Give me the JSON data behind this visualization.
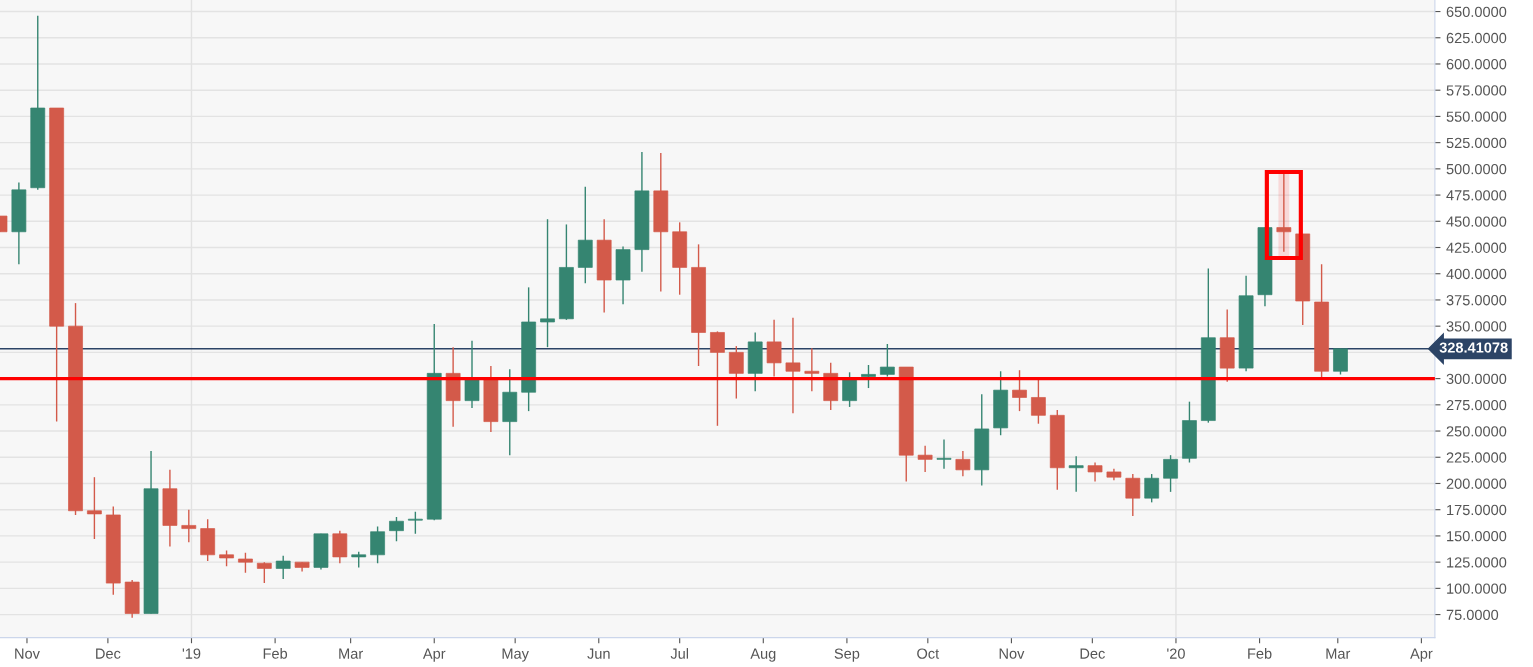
{
  "chart_data": {
    "type": "candlestick",
    "x": [
      "2018-10-22",
      "2018-10-29",
      "2018-11-05",
      "2018-11-12",
      "2018-11-19",
      "2018-11-26",
      "2018-12-03",
      "2018-12-10",
      "2018-12-17",
      "2018-12-24",
      "2018-12-31",
      "2019-01-07",
      "2019-01-14",
      "2019-01-21",
      "2019-01-28",
      "2019-02-04",
      "2019-02-11",
      "2019-02-18",
      "2019-02-25",
      "2019-03-04",
      "2019-03-11",
      "2019-03-18",
      "2019-03-25",
      "2019-04-01",
      "2019-04-08",
      "2019-04-15",
      "2019-04-22",
      "2019-04-29",
      "2019-05-06",
      "2019-05-13",
      "2019-05-20",
      "2019-05-27",
      "2019-06-03",
      "2019-06-10",
      "2019-06-17",
      "2019-06-24",
      "2019-07-01",
      "2019-07-08",
      "2019-07-15",
      "2019-07-22",
      "2019-07-29",
      "2019-08-05",
      "2019-08-12",
      "2019-08-19",
      "2019-08-26",
      "2019-09-02",
      "2019-09-09",
      "2019-09-16",
      "2019-09-23",
      "2019-09-30",
      "2019-10-07",
      "2019-10-14",
      "2019-10-21",
      "2019-10-28",
      "2019-11-04",
      "2019-11-11",
      "2019-11-18",
      "2019-11-25",
      "2019-12-02",
      "2019-12-09",
      "2019-12-16",
      "2019-12-23",
      "2019-12-30",
      "2020-01-06",
      "2020-01-13",
      "2020-01-20",
      "2020-01-27",
      "2020-02-03",
      "2020-02-10",
      "2020-02-17",
      "2020-02-24",
      "2020-03-02"
    ],
    "ohlc": [
      [
        455,
        455,
        440,
        440
      ],
      [
        440,
        487,
        409,
        480
      ],
      [
        482,
        646,
        480,
        558
      ],
      [
        558,
        558,
        259,
        350
      ],
      [
        350,
        372,
        170,
        174
      ],
      [
        174,
        206,
        147,
        171
      ],
      [
        170,
        178,
        94,
        105
      ],
      [
        106,
        108,
        72,
        76
      ],
      [
        76,
        231,
        76,
        195
      ],
      [
        195,
        213,
        140,
        160
      ],
      [
        160,
        175,
        144,
        157
      ],
      [
        157,
        166,
        126,
        132
      ],
      [
        132,
        136,
        121,
        129
      ],
      [
        128,
        134,
        115,
        125
      ],
      [
        124,
        125,
        105,
        119
      ],
      [
        119,
        131,
        109,
        126
      ],
      [
        125,
        125,
        116,
        120
      ],
      [
        120,
        152,
        118,
        152
      ],
      [
        152,
        155,
        124,
        130
      ],
      [
        130,
        135,
        120,
        132
      ],
      [
        132,
        159,
        124,
        154
      ],
      [
        155,
        168,
        145,
        164
      ],
      [
        165,
        173,
        152,
        166
      ],
      [
        166,
        352,
        165,
        305
      ],
      [
        305,
        330,
        254,
        279
      ],
      [
        279,
        336,
        272,
        299
      ],
      [
        299,
        312,
        249,
        259
      ],
      [
        259,
        309,
        227,
        287
      ],
      [
        287,
        387,
        269,
        354
      ],
      [
        354,
        452,
        330,
        357
      ],
      [
        357,
        447,
        356,
        406
      ],
      [
        406,
        483,
        391,
        432
      ],
      [
        432,
        452,
        363,
        394
      ],
      [
        394,
        426,
        371,
        423
      ],
      [
        423,
        516,
        402,
        479
      ],
      [
        479,
        515,
        383,
        440
      ],
      [
        440,
        449,
        380,
        406
      ],
      [
        406,
        428,
        312,
        344
      ],
      [
        344,
        345,
        255,
        325
      ],
      [
        325,
        331,
        281,
        305
      ],
      [
        305,
        344,
        288,
        335
      ],
      [
        335,
        356,
        302,
        315
      ],
      [
        315,
        358,
        267,
        307
      ],
      [
        307,
        329,
        288,
        305
      ],
      [
        305,
        315,
        270,
        279
      ],
      [
        279,
        306,
        273,
        300
      ],
      [
        302,
        313,
        291,
        304
      ],
      [
        304,
        333,
        302,
        311
      ],
      [
        311,
        311,
        202,
        227
      ],
      [
        227,
        236,
        211,
        223
      ],
      [
        223,
        242,
        214,
        224
      ],
      [
        223,
        231,
        207,
        213
      ],
      [
        213,
        285,
        198,
        252
      ],
      [
        253,
        307,
        246,
        289
      ],
      [
        289,
        308,
        269,
        282
      ],
      [
        282,
        300,
        257,
        265
      ],
      [
        265,
        270,
        194,
        215
      ],
      [
        215,
        226,
        192,
        217
      ],
      [
        217,
        220,
        202,
        211
      ],
      [
        211,
        214,
        203,
        206
      ],
      [
        205,
        209,
        169,
        186
      ],
      [
        186,
        209,
        182,
        205
      ],
      [
        205,
        227,
        192,
        223
      ],
      [
        224,
        278,
        220,
        260
      ],
      [
        260,
        405,
        258,
        339
      ],
      [
        339,
        366,
        297,
        310
      ],
      [
        310,
        398,
        307,
        379
      ],
      [
        380,
        444,
        369,
        444
      ],
      [
        444,
        497,
        421,
        440
      ],
      [
        438,
        438,
        351,
        374
      ],
      [
        373,
        409,
        299,
        307
      ],
      [
        307,
        328.41078,
        304,
        328.41078
      ]
    ],
    "colors": [
      "#d35a4a",
      "#358571",
      "#358571",
      "#d35a4a",
      "#d35a4a",
      "#d35a4a",
      "#d35a4a",
      "#d35a4a",
      "#358571",
      "#d35a4a",
      "#d35a4a",
      "#d35a4a",
      "#d35a4a",
      "#d35a4a",
      "#d35a4a",
      "#358571",
      "#d35a4a",
      "#358571",
      "#d35a4a",
      "#358571",
      "#358571",
      "#358571",
      "#358571",
      "#358571",
      "#d35a4a",
      "#358571",
      "#d35a4a",
      "#358571",
      "#358571",
      "#358571",
      "#358571",
      "#358571",
      "#d35a4a",
      "#358571",
      "#358571",
      "#d35a4a",
      "#d35a4a",
      "#d35a4a",
      "#d35a4a",
      "#d35a4a",
      "#358571",
      "#d35a4a",
      "#d35a4a",
      "#d35a4a",
      "#d35a4a",
      "#358571",
      "#358571",
      "#358571",
      "#d35a4a",
      "#d35a4a",
      "#358571",
      "#d35a4a",
      "#358571",
      "#358571",
      "#d35a4a",
      "#d35a4a",
      "#d35a4a",
      "#358571",
      "#d35a4a",
      "#d35a4a",
      "#d35a4a",
      "#358571",
      "#358571",
      "#358571",
      "#358571",
      "#d35a4a",
      "#358571",
      "#358571",
      "#d35a4a",
      "#d35a4a",
      "#d35a4a",
      "#358571"
    ],
    "xlim": [
      "2018-10-22",
      "2020-04-06"
    ],
    "xticks": [
      {
        "value": "2018-11-01",
        "label": "Nov"
      },
      {
        "value": "2018-12-01",
        "label": "Dec"
      },
      {
        "value": "2019-01-01",
        "label": "'19"
      },
      {
        "value": "2019-02-01",
        "label": "Feb"
      },
      {
        "value": "2019-03-01",
        "label": "Mar"
      },
      {
        "value": "2019-04-01",
        "label": "Apr"
      },
      {
        "value": "2019-05-01",
        "label": "May"
      },
      {
        "value": "2019-06-01",
        "label": "Jun"
      },
      {
        "value": "2019-07-01",
        "label": "Jul"
      },
      {
        "value": "2019-08-01",
        "label": "Aug"
      },
      {
        "value": "2019-09-01",
        "label": "Sep"
      },
      {
        "value": "2019-10-01",
        "label": "Oct"
      },
      {
        "value": "2019-11-01",
        "label": "Nov"
      },
      {
        "value": "2019-12-01",
        "label": "Dec"
      },
      {
        "value": "2020-01-01",
        "label": "'20"
      },
      {
        "value": "2020-02-01",
        "label": "Feb"
      },
      {
        "value": "2020-03-01",
        "label": "Mar"
      },
      {
        "value": "2020-04-01",
        "label": "Apr"
      }
    ],
    "ylim": [
      53,
      661
    ],
    "yticks": [
      {
        "value": 75,
        "label": "75.0000"
      },
      {
        "value": 100,
        "label": "100.0000"
      },
      {
        "value": 125,
        "label": "125.0000"
      },
      {
        "value": 150,
        "label": "150.0000"
      },
      {
        "value": 175,
        "label": "175.0000"
      },
      {
        "value": 200,
        "label": "200.0000"
      },
      {
        "value": 225,
        "label": "225.0000"
      },
      {
        "value": 250,
        "label": "250.0000"
      },
      {
        "value": 275,
        "label": "275.0000"
      },
      {
        "value": 300,
        "label": "300.0000"
      },
      {
        "value": 325,
        "label": null
      },
      {
        "value": 350,
        "label": "350.0000"
      },
      {
        "value": 375,
        "label": "375.0000"
      },
      {
        "value": 400,
        "label": "400.0000"
      },
      {
        "value": 425,
        "label": "425.0000"
      },
      {
        "value": 450,
        "label": "450.0000"
      },
      {
        "value": 475,
        "label": "475.0000"
      },
      {
        "value": 500,
        "label": "500.0000"
      },
      {
        "value": 525,
        "label": "525.0000"
      },
      {
        "value": 550,
        "label": "550.0000"
      },
      {
        "value": 575,
        "label": "575.0000"
      },
      {
        "value": 600,
        "label": "600.0000"
      },
      {
        "value": 625,
        "label": "625.0000"
      },
      {
        "value": 650,
        "label": "650.0000"
      }
    ],
    "grid": "y",
    "ref_lines": [
      {
        "axis": "x",
        "value": "2019-01-01",
        "color": "#e2e2e2"
      },
      {
        "axis": "x",
        "value": "2020-01-01",
        "color": "#e2e2e2"
      },
      {
        "axis": "y",
        "value": 300,
        "color": "#ff0000"
      },
      {
        "axis": "y",
        "value": 328.41078,
        "label": "328.41078",
        "color": "#2c4466"
      }
    ],
    "bands": [
      {
        "axis": "x",
        "from": "2020-02-08",
        "to": "2020-02-12",
        "color": "#ff0000"
      }
    ]
  }
}
